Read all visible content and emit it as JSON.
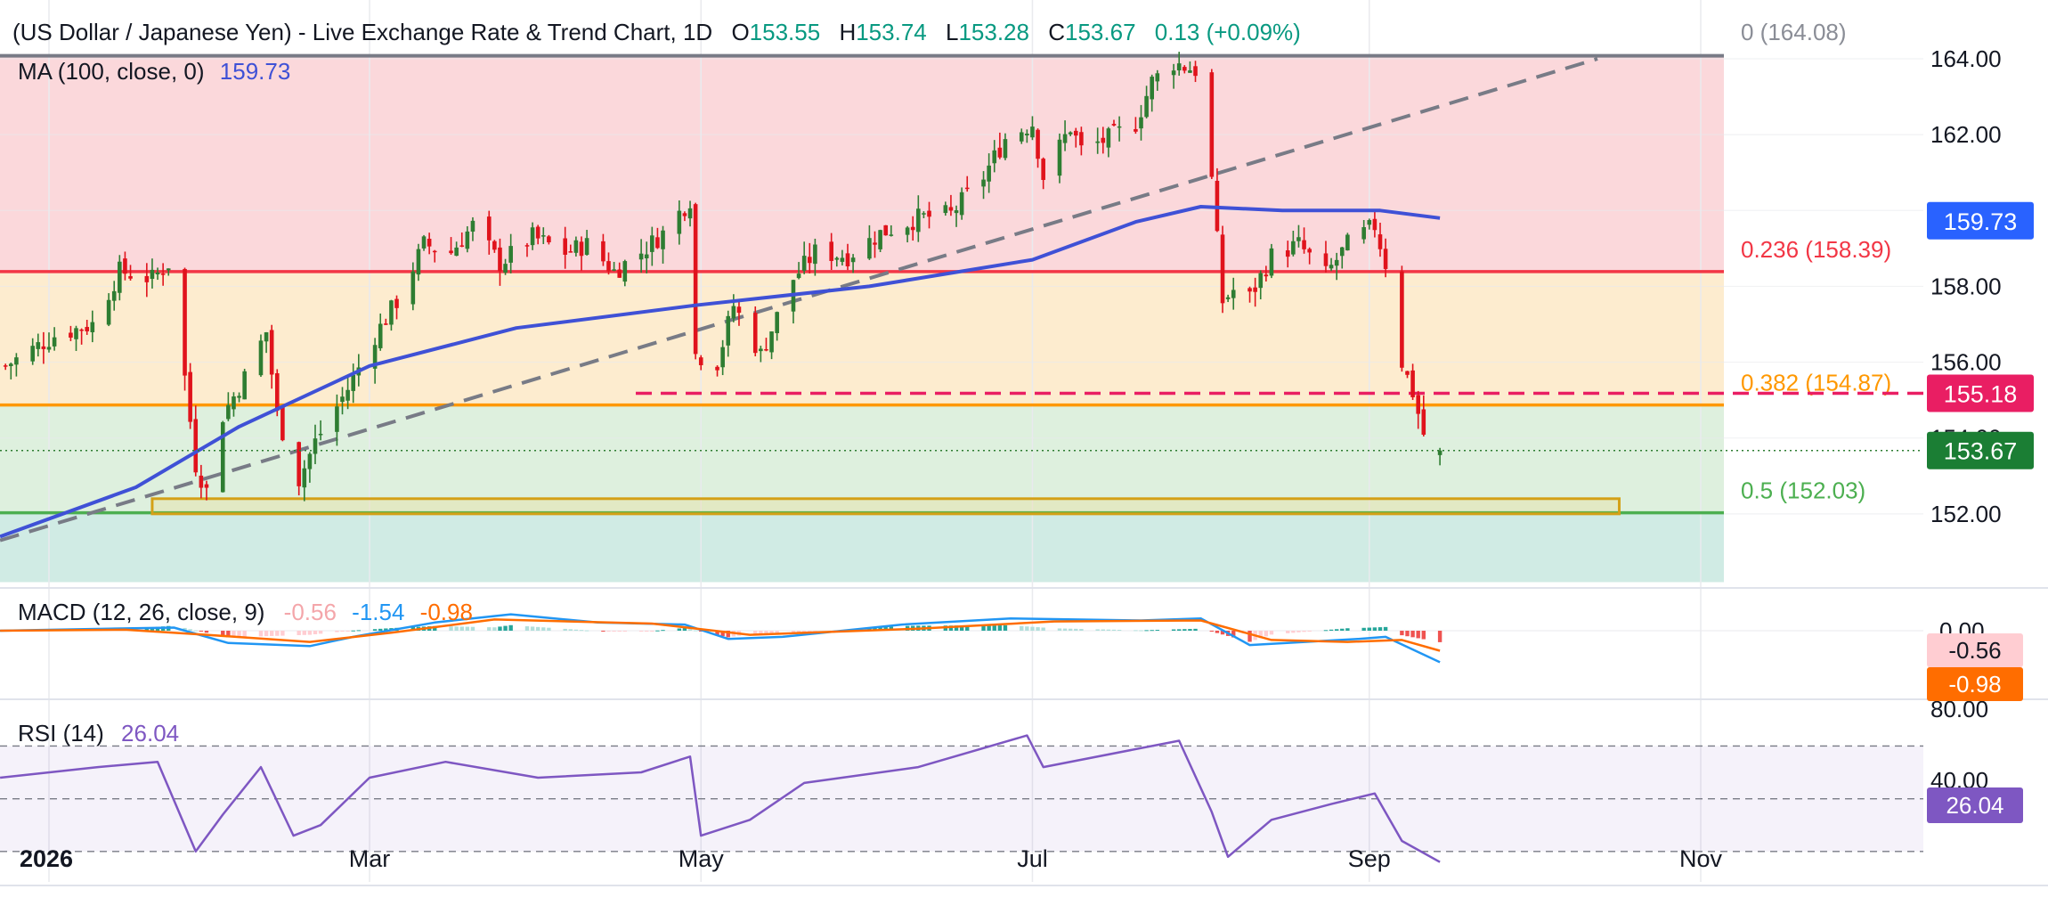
{
  "header": {
    "symbol_text": "(US Dollar / Japanese Yen) - Live Exchange Rate & Trend Chart, 1D",
    "open_label": "O",
    "open_value": "153.55",
    "high_label": "H",
    "high_value": "153.74",
    "low_label": "L",
    "low_value": "153.28",
    "close_label": "C",
    "close_value": "153.67",
    "change_text": "0.13 (+0.09%)",
    "ma_label": "MA (100, close, 0)",
    "ma_value": "159.73"
  },
  "colors": {
    "up": "#26a69a",
    "down": "#e0131c",
    "ma": "#3f51d6",
    "green_candle": "#2e7d32",
    "fib_0": "#787b86",
    "fib_236": "#f23645",
    "fib_382": "#ff9800",
    "fib_5": "#4caf50",
    "zone_red": "#fbd6d9",
    "zone_orange": "#fdebcc",
    "zone_green": "#dcefdc",
    "zone_teal": "#cdeae3",
    "resistance_dash": "#e91e63",
    "macd_line": "#2196f3",
    "signal_line": "#ff6d00",
    "rsi_line": "#7e57c2"
  },
  "chart_data": [
    {
      "type": "candlestick",
      "title": "(US Dollar / Japanese Yen) - Live Exchange Rate & Trend Chart, 1D",
      "y_range": [
        150.2,
        164.8
      ],
      "y_ticks": [
        152,
        154,
        156,
        158,
        160,
        162,
        164
      ],
      "y_tick_labels": [
        "152.00",
        "154.00",
        "156.00",
        "158.00",
        "160.00",
        "162.00",
        "164.00"
      ],
      "x_axis_labels": [
        {
          "label": "2026",
          "date": "2026-01-01"
        },
        {
          "label": "Mar",
          "date": "2026-03-01"
        },
        {
          "label": "May",
          "date": "2026-05-01"
        },
        {
          "label": "Jul",
          "date": "2026-07-01"
        },
        {
          "label": "Sep",
          "date": "2026-09-01"
        },
        {
          "label": "Nov",
          "date": "2026-11-01"
        }
      ],
      "x_range": [
        "2025-12-23",
        "2026-11-03"
      ],
      "ohlc_anchors": [
        {
          "date": "2025-12-24",
          "close": 155.9
        },
        {
          "date": "2026-01-02",
          "close": 156.7
        },
        {
          "date": "2026-01-09",
          "close": 157.0
        },
        {
          "date": "2026-01-14",
          "close": 158.4
        },
        {
          "date": "2026-01-20",
          "close": 158.2
        },
        {
          "date": "2026-01-23",
          "close": 158.6
        },
        {
          "date": "2026-01-26",
          "close": 155.6
        },
        {
          "date": "2026-01-28",
          "close": 153.3
        },
        {
          "date": "2026-01-30",
          "close": 152.6
        },
        {
          "date": "2026-02-02",
          "close": 154.6
        },
        {
          "date": "2026-02-06",
          "close": 155.6
        },
        {
          "date": "2026-02-10",
          "close": 156.8
        },
        {
          "date": "2026-02-12",
          "close": 154.6
        },
        {
          "date": "2026-02-16",
          "close": 152.9
        },
        {
          "date": "2026-02-19",
          "close": 153.9
        },
        {
          "date": "2026-02-25",
          "close": 155.3
        },
        {
          "date": "2026-03-02",
          "close": 156.7
        },
        {
          "date": "2026-03-06",
          "close": 157.6
        },
        {
          "date": "2026-03-11",
          "close": 159.1
        },
        {
          "date": "2026-03-16",
          "close": 158.9
        },
        {
          "date": "2026-03-20",
          "close": 159.6
        },
        {
          "date": "2026-03-25",
          "close": 158.6
        },
        {
          "date": "2026-03-31",
          "close": 159.3
        },
        {
          "date": "2026-04-06",
          "close": 158.9
        },
        {
          "date": "2026-04-10",
          "close": 159.1
        },
        {
          "date": "2026-04-15",
          "close": 158.4
        },
        {
          "date": "2026-04-20",
          "close": 158.9
        },
        {
          "date": "2026-04-24",
          "close": 159.4
        },
        {
          "date": "2026-04-29",
          "close": 160.3
        },
        {
          "date": "2026-04-30",
          "close": 156.2
        },
        {
          "date": "2026-05-04",
          "close": 156.0
        },
        {
          "date": "2026-05-07",
          "close": 157.5
        },
        {
          "date": "2026-05-12",
          "close": 156.2
        },
        {
          "date": "2026-05-18",
          "close": 158.2
        },
        {
          "date": "2026-05-22",
          "close": 158.9
        },
        {
          "date": "2026-05-28",
          "close": 158.8
        },
        {
          "date": "2026-06-03",
          "close": 159.4
        },
        {
          "date": "2026-06-10",
          "close": 159.8
        },
        {
          "date": "2026-06-16",
          "close": 159.9
        },
        {
          "date": "2026-06-22",
          "close": 160.9
        },
        {
          "date": "2026-06-26",
          "close": 161.9
        },
        {
          "date": "2026-07-01",
          "close": 162.3
        },
        {
          "date": "2026-07-03",
          "close": 160.9
        },
        {
          "date": "2026-07-08",
          "close": 162.2
        },
        {
          "date": "2026-07-10",
          "close": 161.6
        },
        {
          "date": "2026-07-15",
          "close": 161.9
        },
        {
          "date": "2026-07-20",
          "close": 162.3
        },
        {
          "date": "2026-07-23",
          "close": 163.4
        },
        {
          "date": "2026-07-27",
          "close": 163.9
        },
        {
          "date": "2026-07-31",
          "close": 163.7
        },
        {
          "date": "2026-08-03",
          "close": 160.8
        },
        {
          "date": "2026-08-05",
          "close": 157.6
        },
        {
          "date": "2026-08-07",
          "close": 157.9
        },
        {
          "date": "2026-08-10",
          "close": 157.7
        },
        {
          "date": "2026-08-14",
          "close": 158.8
        },
        {
          "date": "2026-08-19",
          "close": 159.1
        },
        {
          "date": "2026-08-24",
          "close": 158.3
        },
        {
          "date": "2026-08-28",
          "close": 159.1
        },
        {
          "date": "2026-09-02",
          "close": 159.6
        },
        {
          "date": "2026-09-04",
          "close": 158.6
        },
        {
          "date": "2026-09-07",
          "close": 156.0
        },
        {
          "date": "2026-09-09",
          "close": 155.2
        },
        {
          "date": "2026-09-11",
          "close": 154.1
        },
        {
          "date": "2026-09-14",
          "close": 153.7
        }
      ],
      "last_candle": {
        "date": "2026-09-14",
        "open": 153.55,
        "high": 153.74,
        "low": 153.28,
        "close": 153.67
      },
      "moving_average": {
        "name": "MA (100, close, 0)",
        "value": 159.73,
        "points": [
          {
            "date": "2025-12-23",
            "value": 151.4
          },
          {
            "date": "2026-01-17",
            "value": 152.7
          },
          {
            "date": "2026-02-05",
            "value": 154.3
          },
          {
            "date": "2026-03-01",
            "value": 155.9
          },
          {
            "date": "2026-03-28",
            "value": 156.9
          },
          {
            "date": "2026-04-30",
            "value": 157.5
          },
          {
            "date": "2026-06-01",
            "value": 158.0
          },
          {
            "date": "2026-07-01",
            "value": 158.7
          },
          {
            "date": "2026-07-20",
            "value": 159.7
          },
          {
            "date": "2026-08-01",
            "value": 160.1
          },
          {
            "date": "2026-08-16",
            "value": 160.0
          },
          {
            "date": "2026-09-03",
            "value": 160.0
          },
          {
            "date": "2026-09-14",
            "value": 159.8
          }
        ]
      },
      "trendline": [
        {
          "date": "2025-12-23",
          "value": 151.3
        },
        {
          "date": "2026-10-13",
          "value": 164.0
        }
      ],
      "fibonacci": [
        {
          "level": "0",
          "price": 164.08,
          "label": "0 (164.08)"
        },
        {
          "level": "0.236",
          "price": 158.39,
          "label": "0.236 (158.39)"
        },
        {
          "level": "0.382",
          "price": 154.87,
          "label": "0.382 (154.87)"
        },
        {
          "level": "0.5",
          "price": 152.03,
          "label": "0.5 (152.03)"
        }
      ],
      "fib_zone_bottom": 150.2,
      "horizontal_resistance": {
        "price": 155.18,
        "label": "155.18",
        "start": "2026-04-19"
      },
      "support_box": {
        "start": "2026-01-20",
        "end": "2026-10-17",
        "low": 152.0,
        "high": 152.4
      },
      "price_badges": [
        {
          "value": "159.73",
          "price": 159.73,
          "kind": "ma"
        },
        {
          "value": "155.18",
          "price": 155.18,
          "kind": "resistance"
        },
        {
          "value": "153.67",
          "price": 153.67,
          "kind": "last"
        }
      ]
    },
    {
      "type": "macd",
      "title": "MACD (12, 26, close, 9)",
      "values_text": [
        "-0.56",
        "-1.54",
        "-0.98"
      ],
      "y_range": [
        -1.8,
        1.2
      ],
      "y_tick_labels": [
        "0.00"
      ],
      "badges": [
        {
          "value": "-0.56",
          "kind": "histogram"
        },
        {
          "value": "-0.98",
          "kind": "signal"
        }
      ],
      "macd_line": [
        {
          "date": "2025-12-23",
          "value": 0.0
        },
        {
          "date": "2026-01-12",
          "value": 0.1
        },
        {
          "date": "2026-01-24",
          "value": 0.15
        },
        {
          "date": "2026-02-03",
          "value": -0.6
        },
        {
          "date": "2026-02-18",
          "value": -0.75
        },
        {
          "date": "2026-02-26",
          "value": -0.3
        },
        {
          "date": "2026-03-13",
          "value": 0.4
        },
        {
          "date": "2026-03-27",
          "value": 0.8
        },
        {
          "date": "2026-04-12",
          "value": 0.4
        },
        {
          "date": "2026-04-28",
          "value": 0.3
        },
        {
          "date": "2026-05-06",
          "value": -0.4
        },
        {
          "date": "2026-05-16",
          "value": -0.3
        },
        {
          "date": "2026-06-07",
          "value": 0.3
        },
        {
          "date": "2026-06-27",
          "value": 0.6
        },
        {
          "date": "2026-07-21",
          "value": 0.5
        },
        {
          "date": "2026-08-01",
          "value": 0.6
        },
        {
          "date": "2026-08-10",
          "value": -0.7
        },
        {
          "date": "2026-08-30",
          "value": -0.4
        },
        {
          "date": "2026-09-04",
          "value": -0.3
        },
        {
          "date": "2026-09-14",
          "value": -1.54
        }
      ],
      "signal_line": [
        {
          "date": "2025-12-23",
          "value": 0.0
        },
        {
          "date": "2026-01-15",
          "value": 0.05
        },
        {
          "date": "2026-01-30",
          "value": -0.2
        },
        {
          "date": "2026-02-18",
          "value": -0.55
        },
        {
          "date": "2026-03-05",
          "value": -0.1
        },
        {
          "date": "2026-03-24",
          "value": 0.55
        },
        {
          "date": "2026-04-22",
          "value": 0.35
        },
        {
          "date": "2026-05-10",
          "value": -0.2
        },
        {
          "date": "2026-06-10",
          "value": 0.1
        },
        {
          "date": "2026-07-05",
          "value": 0.45
        },
        {
          "date": "2026-08-01",
          "value": 0.5
        },
        {
          "date": "2026-08-14",
          "value": -0.45
        },
        {
          "date": "2026-08-28",
          "value": -0.55
        },
        {
          "date": "2026-09-07",
          "value": -0.45
        },
        {
          "date": "2026-09-14",
          "value": -0.98
        }
      ]
    },
    {
      "type": "rsi",
      "title": "RSI (14)",
      "value": 26.04,
      "y_range": [
        18,
        84
      ],
      "y_tick_labels": [
        "80.00",
        "40.00"
      ],
      "levels": [
        70,
        50,
        30
      ],
      "badge": {
        "value": "26.04"
      },
      "points": [
        {
          "date": "2025-12-23",
          "value": 58
        },
        {
          "date": "2026-01-10",
          "value": 62
        },
        {
          "date": "2026-01-21",
          "value": 64
        },
        {
          "date": "2026-01-28",
          "value": 30
        },
        {
          "date": "2026-02-02",
          "value": 44
        },
        {
          "date": "2026-02-09",
          "value": 62
        },
        {
          "date": "2026-02-15",
          "value": 36
        },
        {
          "date": "2026-02-20",
          "value": 40
        },
        {
          "date": "2026-03-01",
          "value": 58
        },
        {
          "date": "2026-03-15",
          "value": 64
        },
        {
          "date": "2026-04-01",
          "value": 58
        },
        {
          "date": "2026-04-20",
          "value": 60
        },
        {
          "date": "2026-04-29",
          "value": 66
        },
        {
          "date": "2026-05-01",
          "value": 36
        },
        {
          "date": "2026-05-10",
          "value": 42
        },
        {
          "date": "2026-05-20",
          "value": 56
        },
        {
          "date": "2026-06-10",
          "value": 62
        },
        {
          "date": "2026-06-30",
          "value": 74
        },
        {
          "date": "2026-07-03",
          "value": 62
        },
        {
          "date": "2026-07-28",
          "value": 72
        },
        {
          "date": "2026-08-03",
          "value": 45
        },
        {
          "date": "2026-08-06",
          "value": 28
        },
        {
          "date": "2026-08-14",
          "value": 42
        },
        {
          "date": "2026-08-25",
          "value": 48
        },
        {
          "date": "2026-09-02",
          "value": 52
        },
        {
          "date": "2026-09-07",
          "value": 34
        },
        {
          "date": "2026-09-14",
          "value": 26
        }
      ]
    }
  ]
}
